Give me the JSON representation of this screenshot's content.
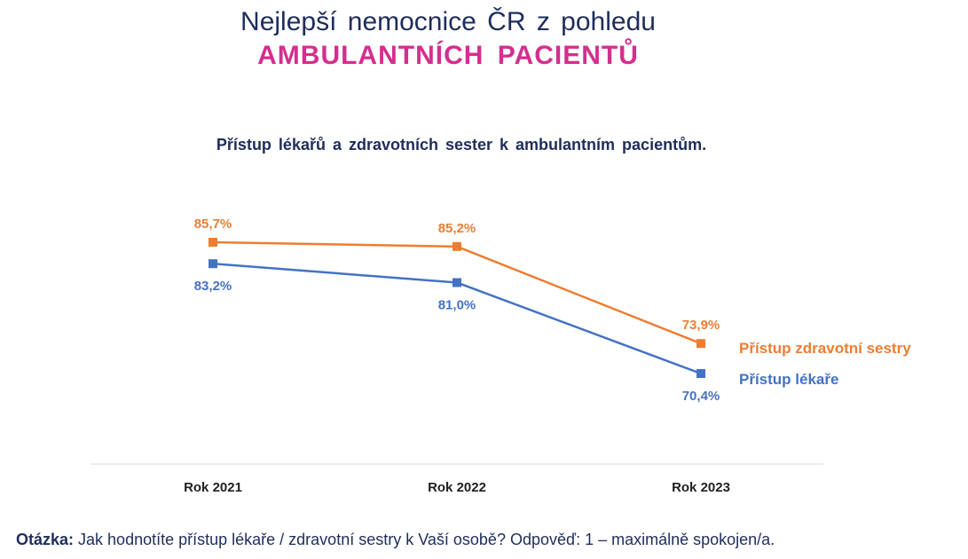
{
  "header": {
    "title_line1": "Nejlepší nemocnice ČR z pohledu",
    "title_line2": "AMBULANTNÍCH PACIENTŮ"
  },
  "footer": {
    "question_label": "Otázka:",
    "question_text": " Jak hodnotíte přístup lékaře / zdravotní sestry k Vaší osobě? Odpověď: 1 – maximálně spokojen/a."
  },
  "chart_data": {
    "type": "line",
    "title": "Přístup lékařů a zdravotních sester k ambulantním pacientům.",
    "categories": [
      "Rok 2021",
      "Rok 2022",
      "Rok 2023"
    ],
    "series": [
      {
        "name": "Přístup zdravotní sestry",
        "values": [
          85.7,
          85.2,
          73.9
        ],
        "labels": [
          "85,7%",
          "85,2%",
          "73,9%"
        ],
        "color": "#ed7d31"
      },
      {
        "name": "Přístup lékaře",
        "values": [
          83.2,
          81.0,
          70.4
        ],
        "labels": [
          "83,2%",
          "81,0%",
          "70,4%"
        ],
        "color": "#4472c4"
      }
    ],
    "legend": "right-inline",
    "grid": false
  }
}
